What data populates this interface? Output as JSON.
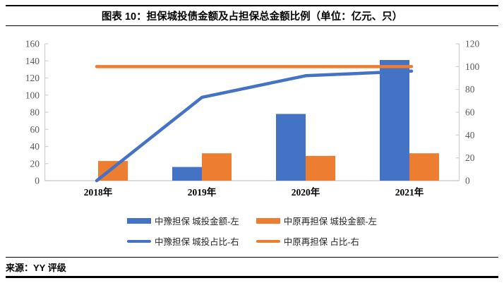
{
  "header": {
    "title": "图表 10：担保城投债金额及占担保总金额比例（单位：亿元、只）"
  },
  "chart_data": {
    "type": "bar+line",
    "categories": [
      "2018年",
      "2019年",
      "2020年",
      "2021年"
    ],
    "series": [
      {
        "name": "中豫担保 城投金额-左",
        "type": "bar",
        "axis": "left",
        "color": "#4472C4",
        "values": [
          0,
          16,
          78,
          141
        ]
      },
      {
        "name": "中原再担保 城投金额-左",
        "type": "bar",
        "axis": "left",
        "color": "#ED7D31",
        "values": [
          23,
          32,
          29,
          32
        ]
      },
      {
        "name": "中豫担保 城投占比-右",
        "type": "line",
        "axis": "right",
        "color": "#4472C4",
        "values": [
          0,
          73,
          92,
          96
        ]
      },
      {
        "name": "中原再担保 占比-右",
        "type": "line",
        "axis": "right",
        "color": "#ED7D31",
        "values": [
          100,
          100,
          100,
          100
        ]
      }
    ],
    "left_axis": {
      "min": 0,
      "max": 160,
      "step": 20
    },
    "right_axis": {
      "min": 0,
      "max": 120,
      "step": 20
    },
    "grid": false,
    "legend_position": "bottom",
    "axis_line_color": "#D2D2D2",
    "tick_label_color": "#595959",
    "category_label_color": "#000000"
  },
  "footer": {
    "source_label": "来源：YY 评级"
  }
}
